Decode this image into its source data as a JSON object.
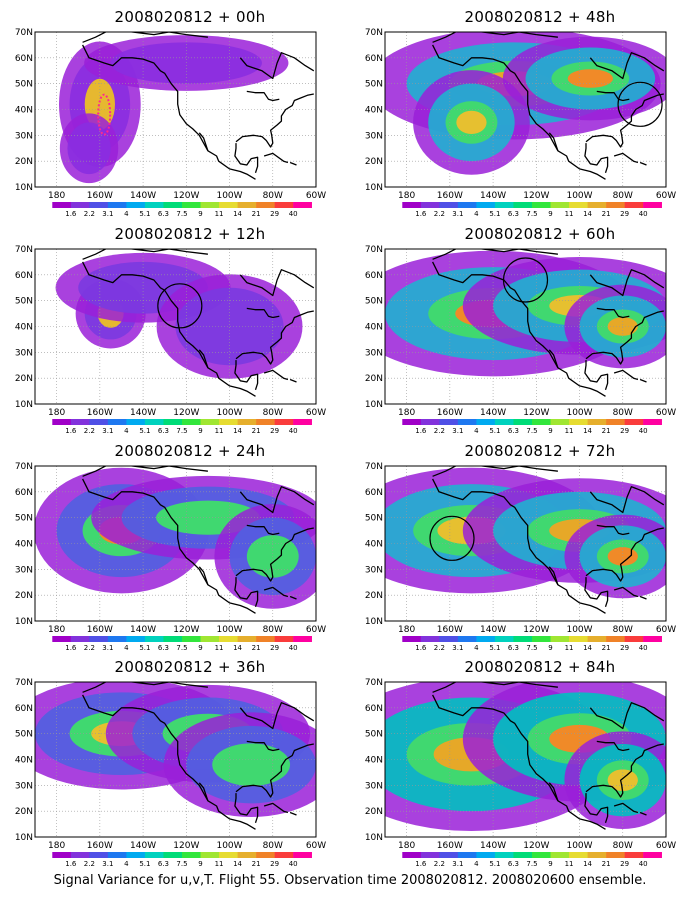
{
  "caption": "Signal Variance for u,v,T. Flight 55. Observation time 2008020812. 2008020600 ensemble.",
  "lon_ticks": [
    "180",
    "160W",
    "140W",
    "120W",
    "100W",
    "80W",
    "60W"
  ],
  "lat_ticks": [
    "70N",
    "60N",
    "50N",
    "40N",
    "30N",
    "20N",
    "10N"
  ],
  "colorbar_labels": [
    "1.6",
    "2.2",
    "3.1",
    "4",
    "5.1",
    "6.3",
    "7.5",
    "9",
    "11",
    "14",
    "21",
    "29",
    "40"
  ],
  "colorbar_colors": [
    "#a000c8",
    "#8232dc",
    "#5050e6",
    "#1e78f0",
    "#00aaf0",
    "#00d2be",
    "#00dc78",
    "#32e63c",
    "#a0e632",
    "#e6dc32",
    "#e6af2d",
    "#f08228",
    "#fa3c3c",
    "#ff00a0"
  ],
  "panels": [
    {
      "title": "2008020812 + 00h",
      "observations": [
        {
          "lon": -158,
          "lat": 38
        }
      ]
    },
    {
      "title": "2008020812 + 12h",
      "circles": [
        {
          "lon": -123,
          "lat": 48
        }
      ]
    },
    {
      "title": "2008020812 + 24h"
    },
    {
      "title": "2008020812 + 36h"
    },
    {
      "title": "2008020812 + 48h",
      "circles": [
        {
          "lon": -72,
          "lat": 42
        }
      ]
    },
    {
      "title": "2008020812 + 60h",
      "circles": [
        {
          "lon": -125,
          "lat": 58
        }
      ]
    },
    {
      "title": "2008020812 + 72h",
      "circles": [
        {
          "lon": -159,
          "lat": 42
        }
      ]
    },
    {
      "title": "2008020812 + 84h"
    }
  ]
}
